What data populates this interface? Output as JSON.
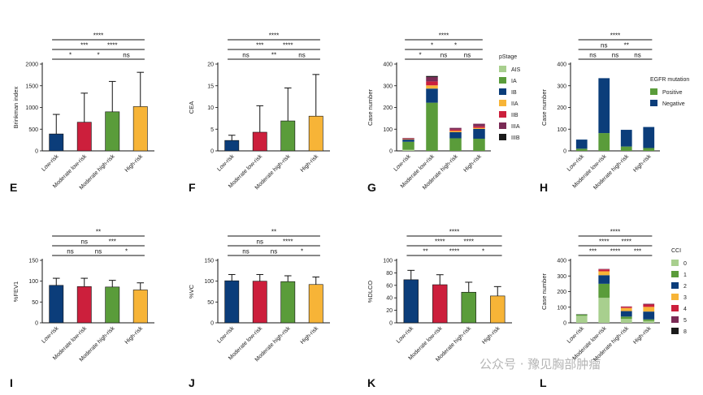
{
  "watermark": "公众号 · 豫见胸部肿瘤",
  "colors": {
    "Low-risk": "#0b3d7a",
    "Moderate low-risk": "#cc1f3c",
    "Moderate high-risk": "#5a9c3a",
    "High-risk": "#f7b437"
  },
  "chart_data": [
    {
      "panel": "E",
      "type": "bar",
      "ylabel": "Brinkman index",
      "categories": [
        "Low-risk",
        "Moderate low-risk",
        "Moderate high-risk",
        "High-risk"
      ],
      "values": [
        390,
        660,
        900,
        1020
      ],
      "errors": [
        840,
        1330,
        1600,
        1810
      ],
      "ylim": [
        0,
        2000
      ],
      "yticks": [
        0,
        500,
        1000,
        1500,
        2000
      ],
      "significance": [
        {
          "from": 0,
          "to": 1,
          "label": "*"
        },
        {
          "from": 1,
          "to": 2,
          "label": "*"
        },
        {
          "from": 2,
          "to": 3,
          "label": "ns"
        },
        {
          "from": 0,
          "to": 2,
          "label": "***"
        },
        {
          "from": 1,
          "to": 3,
          "label": "****"
        },
        {
          "from": 0,
          "to": 3,
          "label": "****"
        }
      ]
    },
    {
      "panel": "F",
      "type": "bar",
      "ylabel": "CEA",
      "categories": [
        "Low-risk",
        "Moderate low-risk",
        "Moderate high-risk",
        "High-risk"
      ],
      "values": [
        2.4,
        4.3,
        6.9,
        8.0
      ],
      "errors": [
        3.6,
        10.4,
        14.5,
        17.6
      ],
      "ylim": [
        0,
        20
      ],
      "yticks": [
        0,
        5,
        10,
        15,
        20
      ],
      "significance": [
        {
          "from": 0,
          "to": 1,
          "label": "ns"
        },
        {
          "from": 1,
          "to": 2,
          "label": "**"
        },
        {
          "from": 2,
          "to": 3,
          "label": "ns"
        },
        {
          "from": 0,
          "to": 2,
          "label": "***"
        },
        {
          "from": 1,
          "to": 3,
          "label": "****"
        },
        {
          "from": 0,
          "to": 3,
          "label": "****"
        }
      ]
    },
    {
      "panel": "G",
      "type": "stacked-bar",
      "ylabel": "Case number",
      "legend_title": "pStage",
      "categories": [
        "Low-risk",
        "Moderate low-risk",
        "Moderate high-risk",
        "High-risk"
      ],
      "ylim": [
        0,
        400
      ],
      "yticks": [
        0,
        100,
        200,
        300,
        400
      ],
      "series": [
        {
          "name": "AIS",
          "color": "#a8cf8e",
          "values": [
            5,
            0,
            0,
            0
          ]
        },
        {
          "name": "IA",
          "color": "#5a9c3a",
          "values": [
            37,
            222,
            58,
            56
          ]
        },
        {
          "name": "IB",
          "color": "#0b3d7a",
          "values": [
            10,
            65,
            28,
            45
          ]
        },
        {
          "name": "IIA",
          "color": "#f7b437",
          "values": [
            2,
            15,
            6,
            5
          ]
        },
        {
          "name": "IIB",
          "color": "#cc1f3c",
          "values": [
            2,
            18,
            6,
            7
          ]
        },
        {
          "name": "IIIA",
          "color": "#7a2a55",
          "values": [
            3,
            20,
            8,
            12
          ]
        },
        {
          "name": "IIIB",
          "color": "#1a1a1a",
          "values": [
            0,
            5,
            0,
            0
          ]
        }
      ],
      "significance": [
        {
          "from": 0,
          "to": 1,
          "label": "*"
        },
        {
          "from": 1,
          "to": 2,
          "label": "ns"
        },
        {
          "from": 2,
          "to": 3,
          "label": "ns"
        },
        {
          "from": 0,
          "to": 2,
          "label": "*"
        },
        {
          "from": 1,
          "to": 3,
          "label": "*"
        },
        {
          "from": 0,
          "to": 3,
          "label": "****"
        }
      ]
    },
    {
      "panel": "H",
      "type": "stacked-bar",
      "ylabel": "Case number",
      "legend_title": "EGFR mutation",
      "categories": [
        "Low-risk",
        "Moderate low-risk",
        "Moderate high-risk",
        "High-risk"
      ],
      "ylim": [
        0,
        400
      ],
      "yticks": [
        0,
        100,
        200,
        300,
        400
      ],
      "series": [
        {
          "name": "Positive",
          "color": "#5a9c3a",
          "values": [
            10,
            82,
            20,
            13
          ]
        },
        {
          "name": "Negative",
          "color": "#0b3d7a",
          "values": [
            42,
            253,
            77,
            97
          ]
        }
      ],
      "significance": [
        {
          "from": 0,
          "to": 1,
          "label": "ns"
        },
        {
          "from": 1,
          "to": 2,
          "label": "ns"
        },
        {
          "from": 2,
          "to": 3,
          "label": "ns"
        },
        {
          "from": 0,
          "to": 2,
          "label": "ns"
        },
        {
          "from": 1,
          "to": 3,
          "label": "**"
        },
        {
          "from": 0,
          "to": 3,
          "label": "****"
        }
      ]
    },
    {
      "panel": "I",
      "type": "bar",
      "ylabel": "%FEV1",
      "categories": [
        "Low-risk",
        "Moderate low-risk",
        "Moderate high-risk",
        "High-risk"
      ],
      "values": [
        90,
        87,
        86,
        79
      ],
      "errors": [
        107,
        107,
        102,
        96
      ],
      "ylim": [
        0,
        150
      ],
      "yticks": [
        0,
        50,
        100,
        150
      ],
      "significance": [
        {
          "from": 0,
          "to": 1,
          "label": "ns"
        },
        {
          "from": 1,
          "to": 2,
          "label": "ns"
        },
        {
          "from": 2,
          "to": 3,
          "label": "*"
        },
        {
          "from": 0,
          "to": 2,
          "label": "ns"
        },
        {
          "from": 1,
          "to": 3,
          "label": "***"
        },
        {
          "from": 0,
          "to": 3,
          "label": "**"
        }
      ]
    },
    {
      "panel": "J",
      "type": "bar",
      "ylabel": "%VC",
      "categories": [
        "Low-risk",
        "Moderate low-risk",
        "Moderate high-risk",
        "High-risk"
      ],
      "values": [
        101,
        100,
        99,
        92
      ],
      "errors": [
        116,
        116,
        113,
        110
      ],
      "ylim": [
        0,
        150
      ],
      "yticks": [
        0,
        50,
        100,
        150
      ],
      "significance": [
        {
          "from": 0,
          "to": 1,
          "label": "ns"
        },
        {
          "from": 1,
          "to": 2,
          "label": "ns"
        },
        {
          "from": 2,
          "to": 3,
          "label": "*"
        },
        {
          "from": 0,
          "to": 2,
          "label": "ns"
        },
        {
          "from": 1,
          "to": 3,
          "label": "****"
        },
        {
          "from": 0,
          "to": 3,
          "label": "**"
        }
      ]
    },
    {
      "panel": "K",
      "type": "bar",
      "ylabel": "%DLCO",
      "categories": [
        "Low-risk",
        "Moderate low-risk",
        "Moderate high-risk",
        "High-risk"
      ],
      "values": [
        69,
        61,
        49,
        43
      ],
      "errors": [
        84,
        77,
        65,
        58
      ],
      "ylim": [
        0,
        100
      ],
      "yticks": [
        0,
        20,
        40,
        60,
        80,
        100
      ],
      "significance": [
        {
          "from": 0,
          "to": 1,
          "label": "**"
        },
        {
          "from": 1,
          "to": 2,
          "label": "****"
        },
        {
          "from": 2,
          "to": 3,
          "label": "*"
        },
        {
          "from": 0,
          "to": 2,
          "label": "****"
        },
        {
          "from": 1,
          "to": 3,
          "label": "****"
        },
        {
          "from": 0,
          "to": 3,
          "label": "****"
        }
      ]
    },
    {
      "panel": "L",
      "type": "stacked-bar",
      "ylabel": "Case number",
      "legend_title": "CCI",
      "categories": [
        "Low-risk",
        "Moderate low-risk",
        "Moderate high-risk",
        "High-risk"
      ],
      "ylim": [
        0,
        400
      ],
      "yticks": [
        0,
        100,
        200,
        300,
        400
      ],
      "series": [
        {
          "name": "0",
          "color": "#a8cf8e",
          "values": [
            45,
            160,
            25,
            12
          ]
        },
        {
          "name": "1",
          "color": "#5a9c3a",
          "values": [
            8,
            90,
            15,
            10
          ]
        },
        {
          "name": "2",
          "color": "#0b3d7a",
          "values": [
            2,
            55,
            35,
            50
          ]
        },
        {
          "name": "3",
          "color": "#f7b437",
          "values": [
            1,
            25,
            20,
            30
          ]
        },
        {
          "name": "4",
          "color": "#cc1f3c",
          "values": [
            0,
            12,
            8,
            15
          ]
        },
        {
          "name": "5",
          "color": "#7a2a55",
          "values": [
            0,
            3,
            2,
            5
          ]
        },
        {
          "name": "8",
          "color": "#1a1a1a",
          "values": [
            0,
            0,
            0,
            0
          ]
        }
      ],
      "significance": [
        {
          "from": 0,
          "to": 1,
          "label": "***"
        },
        {
          "from": 1,
          "to": 2,
          "label": "****"
        },
        {
          "from": 2,
          "to": 3,
          "label": "***"
        },
        {
          "from": 0,
          "to": 2,
          "label": "****"
        },
        {
          "from": 1,
          "to": 3,
          "label": "****"
        },
        {
          "from": 0,
          "to": 3,
          "label": "****"
        }
      ]
    }
  ]
}
